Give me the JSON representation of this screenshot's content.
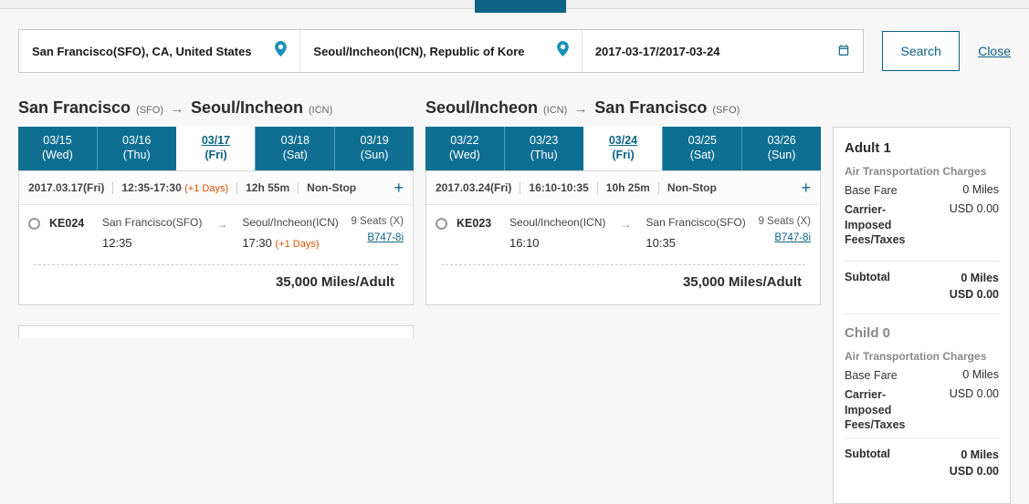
{
  "search": {
    "from": "San Francisco(SFO), CA, United States",
    "to": "Seoul/Incheon(ICN), Republic of Kore",
    "dates": "2017-03-17/2017-03-24",
    "button": "Search",
    "close": "Close"
  },
  "route_out": {
    "from_city": "San Francisco",
    "from_code": "(SFO)",
    "to_city": "Seoul/Incheon",
    "to_code": "(ICN)"
  },
  "route_ret": {
    "from_city": "Seoul/Incheon",
    "from_code": "(ICN)",
    "to_city": "San Francisco",
    "to_code": "(SFO)"
  },
  "tabs_out": [
    {
      "md": "03/15",
      "dw": "(Wed)"
    },
    {
      "md": "03/16",
      "dw": "(Thu)"
    },
    {
      "md": "03/17",
      "dw": "(Fri)"
    },
    {
      "md": "03/18",
      "dw": "(Sat)"
    },
    {
      "md": "03/19",
      "dw": "(Sun)"
    }
  ],
  "tabs_out_active": 2,
  "tabs_ret": [
    {
      "md": "03/22",
      "dw": "(Wed)"
    },
    {
      "md": "03/23",
      "dw": "(Thu)"
    },
    {
      "md": "03/24",
      "dw": "(Fri)"
    },
    {
      "md": "03/25",
      "dw": "(Sat)"
    },
    {
      "md": "03/26",
      "dw": "(Sun)"
    }
  ],
  "tabs_ret_active": 2,
  "sum_out": {
    "date": "2017.03.17(Fri)",
    "time": "12:35-17:30",
    "plus": "(+1 Days)",
    "dur": "12h 55m",
    "stops": "Non-Stop"
  },
  "sum_ret": {
    "date": "2017.03.24(Fri)",
    "time": "16:10-10:35",
    "dur": "10h 25m",
    "stops": "Non-Stop"
  },
  "flight_out": {
    "num": "KE024",
    "dep_place": "San Francisco(SFO)",
    "dep_time": "12:35",
    "arr_place": "Seoul/Incheon(ICN)",
    "arr_time": "17:30",
    "arr_plus": "(+1 Days)",
    "seats": "9 Seats (X)",
    "aircraft": "B747-8i"
  },
  "flight_ret": {
    "num": "KE023",
    "dep_place": "Seoul/Incheon(ICN)",
    "dep_time": "16:10",
    "arr_place": "San Francisco(SFO)",
    "arr_time": "10:35",
    "seats": "9 Seats (X)",
    "aircraft": "B747-8i"
  },
  "miles": "35,000 Miles/Adult",
  "sidebar": {
    "adult_title": "Adult 1",
    "child_title": "Child 0",
    "charges_label": "Air Transportation Charges",
    "base_fare_label": "Base Fare",
    "base_fare_value": "0 Miles",
    "cif_label": "Carrier-Imposed Fees/Taxes",
    "cif_value": "USD 0.00",
    "subtotal_label": "Subtotal",
    "subtotal_miles": "0 Miles",
    "subtotal_usd": "USD 0.00"
  },
  "colors": {
    "teal": "#0e6f93",
    "link": "#0d6286",
    "orange": "#d94f00"
  }
}
